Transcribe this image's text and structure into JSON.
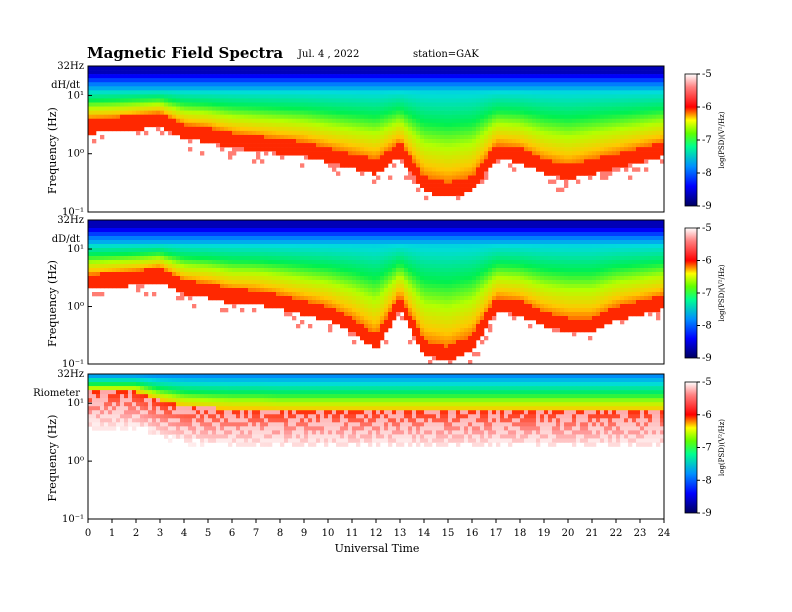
{
  "chart_data": {
    "type": "heatmap",
    "title": "Magnetic Field Spectra",
    "date": "Jul. 4 , 2022",
    "station": "station=GAK",
    "xlabel": "Universal Time",
    "xlim": [
      0,
      24
    ],
    "x_ticks": [
      "0",
      "1",
      "2",
      "3",
      "4",
      "5",
      "6",
      "7",
      "8",
      "9",
      "10",
      "11",
      "12",
      "13",
      "14",
      "15",
      "16",
      "17",
      "18",
      "19",
      "20",
      "21",
      "22",
      "23",
      "24"
    ],
    "ylabel": "Frequency (Hz)",
    "y_scale": "log",
    "ylim_hz": [
      0.1,
      32
    ],
    "y_ticks": [
      "32Hz",
      "10¹",
      "10⁰",
      "10⁻¹"
    ],
    "colorbar": {
      "label": "log(PSD)(V²/Hz)",
      "range": [
        -9,
        -5
      ],
      "ticks": [
        "-5",
        "-6",
        "-7",
        "-8",
        "-9"
      ],
      "colors": [
        "#000060",
        "#0000ff",
        "#00ffff",
        "#00ff00",
        "#ffff00",
        "#ff0000",
        "#ffffff"
      ]
    },
    "panels": [
      {
        "name": "dH/dt",
        "envelope_top_log10_hz": [
          0.6,
          0.62,
          0.66,
          0.7,
          0.5,
          0.45,
          0.35,
          0.3,
          0.25,
          0.2,
          0.1,
          0.0,
          -0.1,
          0.2,
          -0.4,
          -0.5,
          -0.4,
          0.15,
          0.1,
          -0.1,
          -0.2,
          -0.1,
          0.0,
          0.1,
          0.2
        ]
      },
      {
        "name": "dD/dt",
        "envelope_top_log10_hz": [
          0.55,
          0.58,
          0.62,
          0.68,
          0.45,
          0.4,
          0.3,
          0.28,
          0.2,
          0.1,
          0.0,
          -0.2,
          -0.5,
          0.2,
          -0.6,
          -0.7,
          -0.5,
          0.15,
          0.1,
          -0.1,
          -0.2,
          -0.2,
          0.0,
          0.1,
          0.2
        ]
      },
      {
        "name": "Riometer",
        "envelope_top_log10_hz": [
          1.2,
          1.2,
          1.2,
          1.05,
          0.95,
          0.92,
          0.9,
          0.9,
          0.88,
          0.88,
          0.88,
          0.88,
          0.88,
          0.88,
          0.88,
          0.88,
          0.88,
          0.88,
          0.88,
          0.88,
          0.88,
          0.88,
          0.88,
          0.88,
          0.88
        ]
      }
    ]
  }
}
